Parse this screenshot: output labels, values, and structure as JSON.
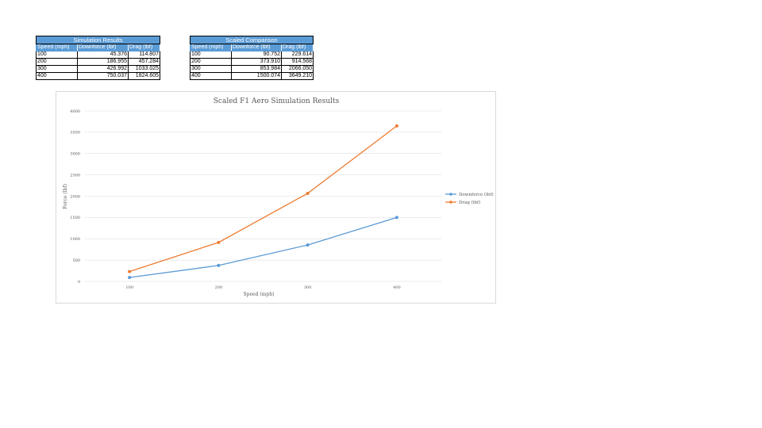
{
  "tables": [
    {
      "title": "Simulation Results",
      "headers": [
        "Speed (mph)",
        "Downforce (lbf)",
        "Drag (lbf)"
      ],
      "rows": [
        [
          "100",
          "45.376",
          "114.807"
        ],
        [
          "200",
          "186.955",
          "457.284"
        ],
        [
          "300",
          "426.992",
          "1033.025"
        ],
        [
          "400",
          "750.037",
          "1824.605"
        ]
      ]
    },
    {
      "title": "Scaled Comparison",
      "headers": [
        "Speed (mph)",
        "Downforce (lbf)",
        "Drag (lbf)"
      ],
      "rows": [
        [
          "100",
          "90.752",
          "229.614"
        ],
        [
          "200",
          "373.910",
          "914.568"
        ],
        [
          "300",
          "853.984",
          "2066.050"
        ],
        [
          "400",
          "1500.074",
          "3649.210"
        ]
      ]
    }
  ],
  "chart_data": {
    "type": "line",
    "title": "Scaled F1 Aero Simulation Results",
    "xlabel": "Speed (mph)",
    "ylabel": "Force (lbf)",
    "categories": [
      "100",
      "200",
      "300",
      "400"
    ],
    "series": [
      {
        "name": "Downforce (lbf)",
        "values": [
          90.752,
          373.91,
          853.984,
          1500.074
        ],
        "color": "#5b9bd5"
      },
      {
        "name": "Drag (lbf)",
        "values": [
          229.614,
          914.568,
          2066.05,
          3649.21
        ],
        "color": "#ed7d31"
      }
    ],
    "ylim": [
      0,
      4000
    ],
    "yticks": [
      0,
      500,
      1000,
      1500,
      2000,
      2500,
      3000,
      3500,
      4000
    ],
    "grid": true,
    "legend": "right",
    "gridColor": "#d9d9d9"
  }
}
